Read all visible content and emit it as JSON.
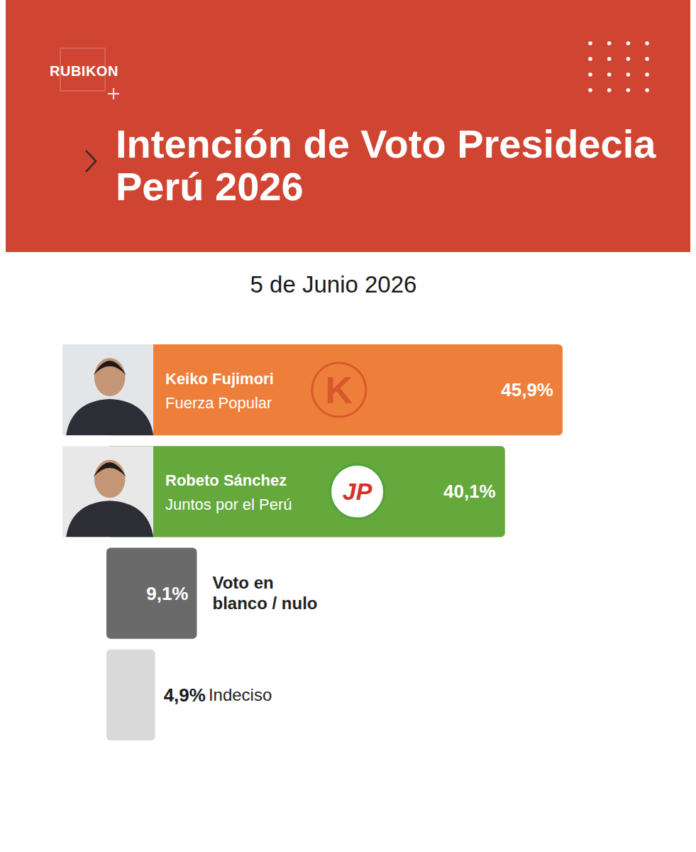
{
  "chart_data": {
    "type": "bar",
    "orientation": "horizontal",
    "brand": "RUBIKON",
    "title": "Intención de Voto Presidecia Perú 2026",
    "subtitle": "5 de Junio 2026",
    "categories": [
      "Keiko Fujimori",
      "Robeto Sánchez",
      "Voto en blanco / nulo",
      "Indeciso"
    ],
    "parties": [
      "Fuerza Popular",
      "Juntos por el Perú",
      null,
      null
    ],
    "logos": [
      "K",
      "JP",
      null,
      null
    ],
    "values": [
      45.9,
      40.1,
      9.1,
      4.9
    ],
    "value_labels": [
      "45,9%",
      "40,1%",
      "9,1%",
      "4,9%"
    ],
    "colors": [
      "#EE7F3B",
      "#65A83C",
      "#6A6A6A",
      "#D9D9D9"
    ],
    "data_labels": true,
    "tick_labels": false
  }
}
